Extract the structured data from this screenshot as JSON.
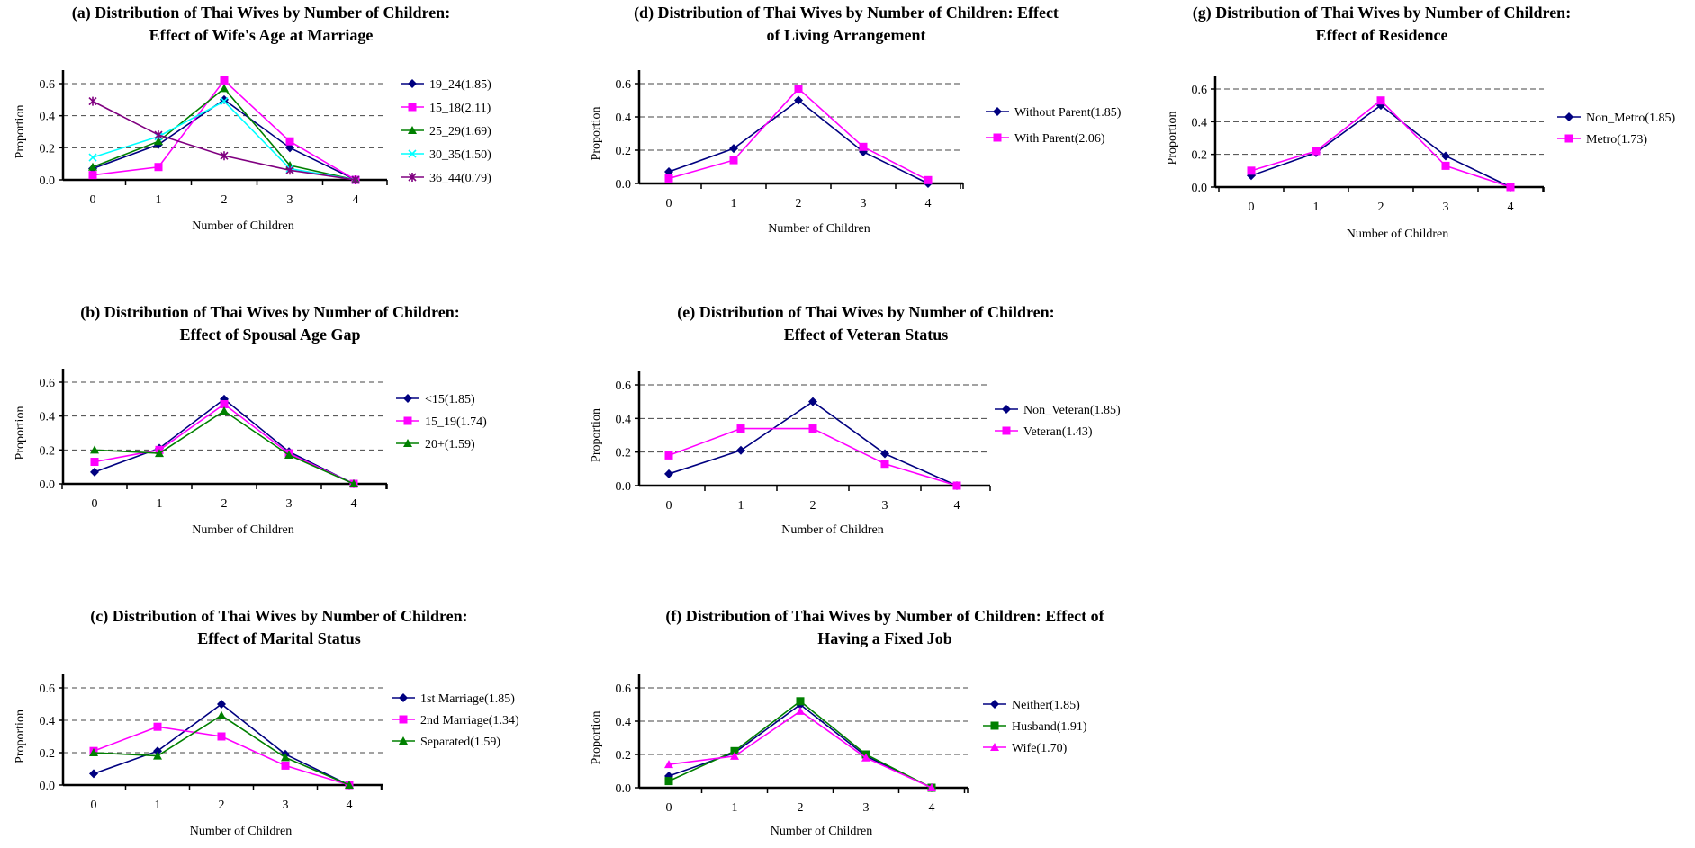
{
  "chart_data": [
    {
      "id": "a",
      "type": "line",
      "title_line1": "(a) Distribution of Thai Wives by Number of Children:",
      "title_line2": "Effect of Wife's Age at Marriage",
      "xlabel": "Number of Children",
      "ylabel": "Proportion",
      "categories": [
        "0",
        "1",
        "2",
        "3",
        "4"
      ],
      "yticks": [
        "0.0",
        "0.2",
        "0.4",
        "0.6"
      ],
      "ylim": [
        0,
        0.6
      ],
      "grid": "horizontal dashed",
      "legend_position": "right",
      "series": [
        {
          "name": "19_24(1.85)",
          "color": "#000080",
          "marker": "diamond",
          "values": [
            0.07,
            0.22,
            0.5,
            0.2,
            0.0
          ]
        },
        {
          "name": "15_18(2.11)",
          "color": "#FF00FF",
          "marker": "square",
          "values": [
            0.03,
            0.08,
            0.62,
            0.24,
            0.0
          ]
        },
        {
          "name": "25_29(1.69)",
          "color": "#008000",
          "marker": "triangle",
          "values": [
            0.08,
            0.24,
            0.57,
            0.09,
            0.0
          ]
        },
        {
          "name": "30_35(1.50)",
          "color": "#00FFFF",
          "marker": "x",
          "values": [
            0.14,
            0.27,
            0.49,
            0.07,
            0.0
          ]
        },
        {
          "name": "36_44(0.79)",
          "color": "#800080",
          "marker": "star",
          "values": [
            0.49,
            0.28,
            0.15,
            0.06,
            0.0
          ]
        }
      ]
    },
    {
      "id": "b",
      "type": "line",
      "title_line1": "(b) Distribution of Thai Wives by Number of Children:",
      "title_line2": "Effect of Spousal Age Gap",
      "xlabel": "Number of Children",
      "ylabel": "Proportion",
      "categories": [
        "0",
        "1",
        "2",
        "3",
        "4"
      ],
      "yticks": [
        "0.0",
        "0.2",
        "0.4",
        "0.6"
      ],
      "ylim": [
        0,
        0.6
      ],
      "grid": "horizontal dashed",
      "legend_position": "right",
      "series": [
        {
          "name": "<15(1.85)",
          "color": "#000080",
          "marker": "diamond",
          "values": [
            0.07,
            0.21,
            0.5,
            0.19,
            0.0
          ]
        },
        {
          "name": "15_19(1.74)",
          "color": "#FF00FF",
          "marker": "square",
          "values": [
            0.13,
            0.2,
            0.47,
            0.18,
            0.0
          ]
        },
        {
          "name": "20+(1.59)",
          "color": "#008000",
          "marker": "triangle",
          "values": [
            0.2,
            0.18,
            0.43,
            0.17,
            0.0
          ]
        }
      ]
    },
    {
      "id": "c",
      "type": "line",
      "title_line1": "(c) Distribution of Thai Wives by Number of Children:",
      "title_line2": "Effect of Marital Status",
      "xlabel": "Number of Children",
      "ylabel": "Proportion",
      "categories": [
        "0",
        "1",
        "2",
        "3",
        "4"
      ],
      "yticks": [
        "0.0",
        "0.2",
        "0.4",
        "0.6"
      ],
      "ylim": [
        0,
        0.6
      ],
      "grid": "horizontal dashed",
      "legend_position": "right",
      "series": [
        {
          "name": "1st Marriage(1.85)",
          "color": "#000080",
          "marker": "diamond",
          "values": [
            0.07,
            0.21,
            0.5,
            0.19,
            0.0
          ]
        },
        {
          "name": "2nd Marriage(1.34)",
          "color": "#FF00FF",
          "marker": "square",
          "values": [
            0.21,
            0.36,
            0.3,
            0.12,
            0.0
          ]
        },
        {
          "name": "Separated(1.59)",
          "color": "#008000",
          "marker": "triangle",
          "values": [
            0.2,
            0.18,
            0.43,
            0.17,
            0.0
          ]
        }
      ]
    },
    {
      "id": "d",
      "type": "line",
      "title_line1": "(d) Distribution of Thai Wives by Number of Children: Effect",
      "title_line2": "of Living Arrangement",
      "xlabel": "Number of Children",
      "ylabel": "Proportion",
      "categories": [
        "0",
        "1",
        "2",
        "3",
        "4"
      ],
      "yticks": [
        "0.0",
        "0.2",
        "0.4",
        "0.6"
      ],
      "ylim": [
        0,
        0.6
      ],
      "grid": "horizontal dashed",
      "legend_position": "right",
      "series": [
        {
          "name": "Without Parent(1.85)",
          "color": "#000080",
          "marker": "diamond",
          "values": [
            0.07,
            0.21,
            0.5,
            0.19,
            0.0
          ]
        },
        {
          "name": "With Parent(2.06)",
          "color": "#FF00FF",
          "marker": "square",
          "values": [
            0.03,
            0.14,
            0.57,
            0.22,
            0.02
          ]
        }
      ]
    },
    {
      "id": "e",
      "type": "line",
      "title_line1": "(e) Distribution of Thai Wives by Number of Children:",
      "title_line2": "Effect of Veteran Status",
      "xlabel": "Number of Children",
      "ylabel": "Proportion",
      "categories": [
        "0",
        "1",
        "2",
        "3",
        "4"
      ],
      "yticks": [
        "0.0",
        "0.2",
        "0.4",
        "0.6"
      ],
      "ylim": [
        0,
        0.6
      ],
      "grid": "horizontal dashed",
      "legend_position": "right",
      "series": [
        {
          "name": "Non_Veteran(1.85)",
          "color": "#000080",
          "marker": "diamond",
          "values": [
            0.07,
            0.21,
            0.5,
            0.19,
            0.0
          ]
        },
        {
          "name": "Veteran(1.43)",
          "color": "#FF00FF",
          "marker": "square",
          "values": [
            0.18,
            0.34,
            0.34,
            0.13,
            0.0
          ]
        }
      ]
    },
    {
      "id": "f",
      "type": "line",
      "title_line1": "(f) Distribution of Thai Wives by Number of Children: Effect of",
      "title_line2": "Having a Fixed Job",
      "xlabel": "Number of Children",
      "ylabel": "Proportion",
      "categories": [
        "0",
        "1",
        "2",
        "3",
        "4"
      ],
      "yticks": [
        "0.0",
        "0.2",
        "0.4",
        "0.6"
      ],
      "ylim": [
        0,
        0.6
      ],
      "grid": "horizontal dashed",
      "legend_position": "right",
      "series": [
        {
          "name": "Neither(1.85)",
          "color": "#000080",
          "marker": "diamond",
          "values": [
            0.07,
            0.21,
            0.5,
            0.19,
            0.0
          ]
        },
        {
          "name": "Husband(1.91)",
          "color": "#008000",
          "marker": "square",
          "values": [
            0.04,
            0.22,
            0.52,
            0.2,
            0.0
          ]
        },
        {
          "name": "Wife(1.70)",
          "color": "#FF00FF",
          "marker": "triangle",
          "values": [
            0.14,
            0.19,
            0.46,
            0.18,
            0.0
          ]
        }
      ]
    },
    {
      "id": "g",
      "type": "line",
      "title_line1": "(g) Distribution of Thai Wives by Number of Children:",
      "title_line2": "Effect of Residence",
      "xlabel": "Number of Children",
      "ylabel": "Proportion",
      "categories": [
        "0",
        "1",
        "2",
        "3",
        "4"
      ],
      "yticks": [
        "0.0",
        "0.2",
        "0.4",
        "0.6"
      ],
      "ylim": [
        0,
        0.6
      ],
      "grid": "horizontal dashed",
      "legend_position": "right",
      "series": [
        {
          "name": "Non_Metro(1.85)",
          "color": "#000080",
          "marker": "diamond",
          "values": [
            0.07,
            0.21,
            0.5,
            0.19,
            0.0
          ]
        },
        {
          "name": "Metro(1.73)",
          "color": "#FF00FF",
          "marker": "square",
          "values": [
            0.1,
            0.22,
            0.53,
            0.13,
            0.0
          ]
        }
      ]
    }
  ]
}
